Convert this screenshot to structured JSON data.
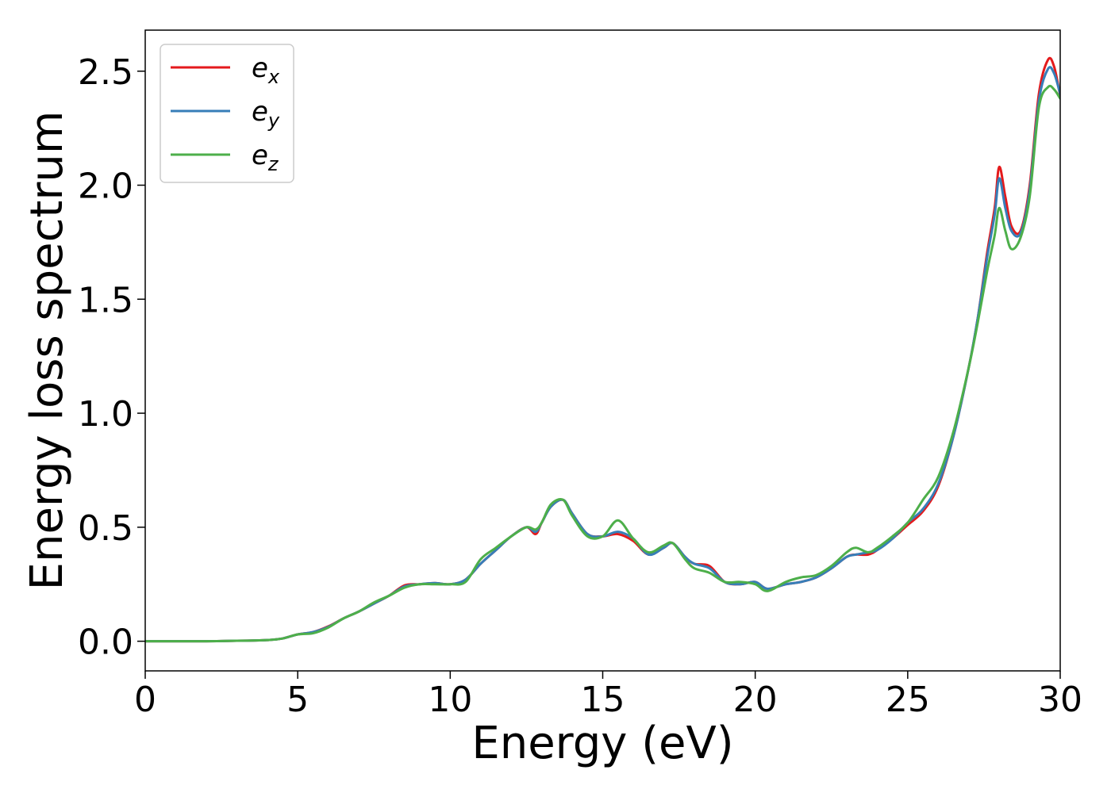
{
  "chart_data": {
    "type": "line",
    "title": "",
    "xlabel": "Energy (eV)",
    "ylabel": "Energy loss spectrum",
    "xlim": [
      0,
      30
    ],
    "ylim": [
      -0.13,
      2.68
    ],
    "xticks": [
      0,
      5,
      10,
      15,
      20,
      25,
      30
    ],
    "xtick_labels": [
      "0",
      "5",
      "10",
      "15",
      "20",
      "25",
      "30"
    ],
    "yticks": [
      0.0,
      0.5,
      1.0,
      1.5,
      2.0,
      2.5
    ],
    "ytick_labels": [
      "0.0",
      "0.5",
      "1.0",
      "1.5",
      "2.0",
      "2.5"
    ],
    "grid": false,
    "legend_position": "top-left",
    "x": [
      0,
      1,
      2,
      3,
      3.5,
      4,
      4.5,
      5,
      5.5,
      6,
      6.5,
      7,
      7.5,
      8,
      8.5,
      9,
      9.5,
      10,
      10.5,
      11,
      11.5,
      12,
      12.5,
      12.8,
      13,
      13.3,
      13.7,
      14,
      14.5,
      15,
      15.5,
      16,
      16.5,
      17,
      17.3,
      17.7,
      18,
      18.5,
      19,
      19.5,
      20,
      20.4,
      21,
      21.5,
      22,
      22.5,
      23,
      23.3,
      23.7,
      24,
      24.5,
      25,
      25.5,
      26,
      26.5,
      27,
      27.3,
      27.6,
      27.85,
      28,
      28.2,
      28.4,
      28.7,
      29,
      29.3,
      29.6,
      29.8,
      30
    ],
    "series": [
      {
        "name": "e",
        "subscript": "x",
        "color": "#e41a1c",
        "values": [
          0,
          0,
          0,
          0.002,
          0.003,
          0.005,
          0.012,
          0.03,
          0.04,
          0.065,
          0.1,
          0.13,
          0.165,
          0.2,
          0.245,
          0.25,
          0.255,
          0.25,
          0.27,
          0.34,
          0.4,
          0.46,
          0.5,
          0.47,
          0.52,
          0.59,
          0.62,
          0.56,
          0.47,
          0.46,
          0.47,
          0.44,
          0.38,
          0.41,
          0.43,
          0.37,
          0.34,
          0.33,
          0.26,
          0.25,
          0.26,
          0.23,
          0.25,
          0.26,
          0.28,
          0.32,
          0.37,
          0.38,
          0.38,
          0.4,
          0.45,
          0.51,
          0.57,
          0.68,
          0.9,
          1.2,
          1.42,
          1.7,
          1.9,
          2.08,
          1.95,
          1.82,
          1.8,
          2.0,
          2.4,
          2.55,
          2.52,
          2.39
        ]
      },
      {
        "name": "e",
        "subscript": "y",
        "color": "#377eb8",
        "values": [
          0,
          0,
          0,
          0.002,
          0.003,
          0.005,
          0.012,
          0.03,
          0.04,
          0.063,
          0.1,
          0.13,
          0.165,
          0.2,
          0.24,
          0.25,
          0.255,
          0.25,
          0.27,
          0.34,
          0.4,
          0.46,
          0.5,
          0.48,
          0.52,
          0.59,
          0.62,
          0.56,
          0.47,
          0.46,
          0.48,
          0.45,
          0.38,
          0.41,
          0.43,
          0.37,
          0.34,
          0.32,
          0.26,
          0.25,
          0.26,
          0.23,
          0.25,
          0.26,
          0.28,
          0.32,
          0.37,
          0.38,
          0.39,
          0.4,
          0.45,
          0.52,
          0.58,
          0.69,
          0.9,
          1.2,
          1.42,
          1.68,
          1.87,
          2.03,
          1.9,
          1.8,
          1.79,
          1.98,
          2.37,
          2.51,
          2.49,
          2.4
        ]
      },
      {
        "name": "e",
        "subscript": "z",
        "color": "#4daf4a",
        "values": [
          0,
          0,
          0,
          0.002,
          0.003,
          0.005,
          0.012,
          0.03,
          0.035,
          0.06,
          0.1,
          0.13,
          0.17,
          0.2,
          0.235,
          0.25,
          0.25,
          0.25,
          0.26,
          0.36,
          0.41,
          0.46,
          0.5,
          0.49,
          0.52,
          0.6,
          0.62,
          0.55,
          0.46,
          0.46,
          0.53,
          0.45,
          0.39,
          0.42,
          0.43,
          0.36,
          0.32,
          0.3,
          0.26,
          0.26,
          0.25,
          0.22,
          0.26,
          0.28,
          0.29,
          0.33,
          0.39,
          0.41,
          0.39,
          0.41,
          0.46,
          0.52,
          0.62,
          0.72,
          0.92,
          1.2,
          1.4,
          1.62,
          1.78,
          1.9,
          1.8,
          1.72,
          1.77,
          1.95,
          2.34,
          2.43,
          2.42,
          2.38
        ]
      }
    ]
  }
}
